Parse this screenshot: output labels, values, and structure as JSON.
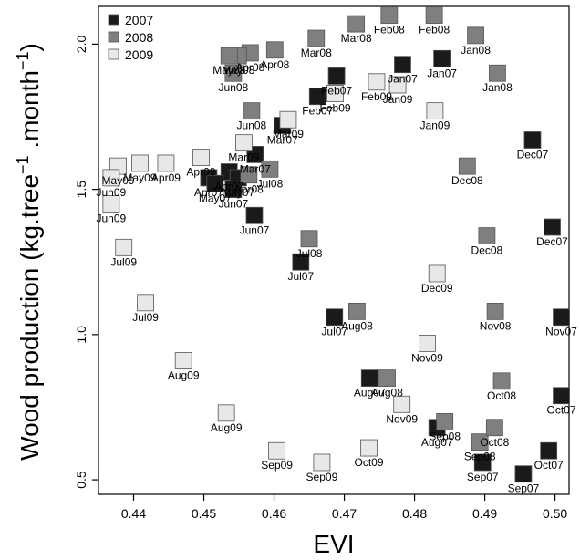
{
  "chart_data": {
    "type": "scatter",
    "xlabel": "EVI",
    "ylabel_main": "Wood production (kg.tree",
    "ylabel_sup1": "−1",
    "ylabel_mid": " .month",
    "ylabel_sup2": "−1",
    "ylabel_end": ")",
    "xlim": [
      0.435,
      0.502
    ],
    "ylim": [
      0.45,
      2.13
    ],
    "x_ticks": [
      "0.44",
      "0.45",
      "0.46",
      "0.47",
      "0.48",
      "0.49",
      "0.50"
    ],
    "y_ticks": [
      "0.5",
      "1.0",
      "1.5",
      "2.0"
    ],
    "grid": false,
    "legend_position": "top-left",
    "series": [
      {
        "name": "2007",
        "color": "#1a1a1a",
        "points": [
          {
            "x": 0.4839,
            "y": 1.95,
            "label": "Jan07"
          },
          {
            "x": 0.4783,
            "y": 1.93,
            "label": "Jan07"
          },
          {
            "x": 0.4689,
            "y": 1.89,
            "label": "Feb07"
          },
          {
            "x": 0.4662,
            "y": 1.82,
            "label": "Feb07"
          },
          {
            "x": 0.4612,
            "y": 1.72,
            "label": "Mar07"
          },
          {
            "x": 0.4573,
            "y": 1.62,
            "label": "Mar07"
          },
          {
            "x": 0.4507,
            "y": 1.54,
            "label": "Apr07"
          },
          {
            "x": 0.4536,
            "y": 1.56,
            "label": "Apr07"
          },
          {
            "x": 0.4516,
            "y": 1.52,
            "label": "May07"
          },
          {
            "x": 0.4549,
            "y": 1.54,
            "label": "May07"
          },
          {
            "x": 0.4542,
            "y": 1.5,
            "label": "Jun07"
          },
          {
            "x": 0.4572,
            "y": 1.41,
            "label": "Jun07"
          },
          {
            "x": 0.4638,
            "y": 1.25,
            "label": "Jul07"
          },
          {
            "x": 0.4686,
            "y": 1.06,
            "label": "Jul07"
          },
          {
            "x": 0.4736,
            "y": 0.85,
            "label": "Aug07"
          },
          {
            "x": 0.4832,
            "y": 0.68,
            "label": "Aug07"
          },
          {
            "x": 0.4897,
            "y": 0.56,
            "label": "Sep07"
          },
          {
            "x": 0.4955,
            "y": 0.52,
            "label": "Sep07"
          },
          {
            "x": 0.4991,
            "y": 0.6,
            "label": "Oct07"
          },
          {
            "x": 0.5009,
            "y": 0.79,
            "label": "Oct07"
          },
          {
            "x": 0.5009,
            "y": 1.06,
            "label": "Nov07"
          },
          {
            "x": 0.4996,
            "y": 1.37,
            "label": "Dec07"
          },
          {
            "x": 0.4968,
            "y": 1.67,
            "label": "Dec07"
          }
        ]
      },
      {
        "name": "2008",
        "color": "#7f7f7f",
        "points": [
          {
            "x": 0.4764,
            "y": 2.1,
            "label": "Feb08"
          },
          {
            "x": 0.4828,
            "y": 2.1,
            "label": "Feb08"
          },
          {
            "x": 0.4887,
            "y": 2.03,
            "label": "Jan08"
          },
          {
            "x": 0.4717,
            "y": 2.07,
            "label": "Mar08"
          },
          {
            "x": 0.466,
            "y": 2.02,
            "label": "Mar08"
          },
          {
            "x": 0.4601,
            "y": 1.98,
            "label": "Apr08"
          },
          {
            "x": 0.4566,
            "y": 1.97,
            "label": "Apr08"
          },
          {
            "x": 0.4549,
            "y": 1.96,
            "label": "May08"
          },
          {
            "x": 0.4536,
            "y": 1.96,
            "label": "May08"
          },
          {
            "x": 0.4542,
            "y": 1.9,
            "label": "Jun08"
          },
          {
            "x": 0.4568,
            "y": 1.77,
            "label": "Jun08"
          },
          {
            "x": 0.4918,
            "y": 1.9,
            "label": "Jan08"
          },
          {
            "x": 0.4564,
            "y": 1.55,
            "label": "Apr08"
          },
          {
            "x": 0.4594,
            "y": 1.57,
            "label": "Jul08"
          },
          {
            "x": 0.465,
            "y": 1.33,
            "label": "Jul08"
          },
          {
            "x": 0.4718,
            "y": 1.08,
            "label": "Aug08"
          },
          {
            "x": 0.4761,
            "y": 0.85,
            "label": "Aug08"
          },
          {
            "x": 0.4843,
            "y": 0.7,
            "label": "Sep08"
          },
          {
            "x": 0.4893,
            "y": 0.63,
            "label": "Sep08"
          },
          {
            "x": 0.4914,
            "y": 0.68,
            "label": "Oct08"
          },
          {
            "x": 0.4924,
            "y": 0.84,
            "label": "Oct08"
          },
          {
            "x": 0.4915,
            "y": 1.08,
            "label": "Nov08"
          },
          {
            "x": 0.4903,
            "y": 1.34,
            "label": "Dec08"
          },
          {
            "x": 0.4875,
            "y": 1.58,
            "label": "Dec08"
          }
        ]
      },
      {
        "name": "2009",
        "color": "#e8e8e8",
        "points": [
          {
            "x": 0.4776,
            "y": 1.86,
            "label": "Jan09"
          },
          {
            "x": 0.4829,
            "y": 1.77,
            "label": "Jan09"
          },
          {
            "x": 0.4746,
            "y": 1.87,
            "label": "Feb09"
          },
          {
            "x": 0.4687,
            "y": 1.83,
            "label": "Feb09"
          },
          {
            "x": 0.462,
            "y": 1.74,
            "label": "Mar09"
          },
          {
            "x": 0.4557,
            "y": 1.66,
            "label": "Mar09"
          },
          {
            "x": 0.4496,
            "y": 1.61,
            "label": "Apr09"
          },
          {
            "x": 0.4446,
            "y": 1.59,
            "label": "Apr09"
          },
          {
            "x": 0.4409,
            "y": 1.59,
            "label": "May09"
          },
          {
            "x": 0.4378,
            "y": 1.58,
            "label": "May09"
          },
          {
            "x": 0.4368,
            "y": 1.54,
            "label": "Jun09"
          },
          {
            "x": 0.4368,
            "y": 1.45,
            "label": "Jun09"
          },
          {
            "x": 0.4386,
            "y": 1.3,
            "label": "Jul09"
          },
          {
            "x": 0.4417,
            "y": 1.11,
            "label": "Jul09"
          },
          {
            "x": 0.4471,
            "y": 0.91,
            "label": "Aug09"
          },
          {
            "x": 0.4532,
            "y": 0.73,
            "label": "Aug09"
          },
          {
            "x": 0.4604,
            "y": 0.6,
            "label": "Sep09"
          },
          {
            "x": 0.4668,
            "y": 0.56,
            "label": "Sep09"
          },
          {
            "x": 0.4735,
            "y": 0.61,
            "label": "Oct09"
          },
          {
            "x": 0.4782,
            "y": 0.76,
            "label": "Nov09"
          },
          {
            "x": 0.4818,
            "y": 0.97,
            "label": "Nov09"
          },
          {
            "x": 0.4832,
            "y": 1.21,
            "label": "Dec09"
          }
        ]
      }
    ]
  }
}
